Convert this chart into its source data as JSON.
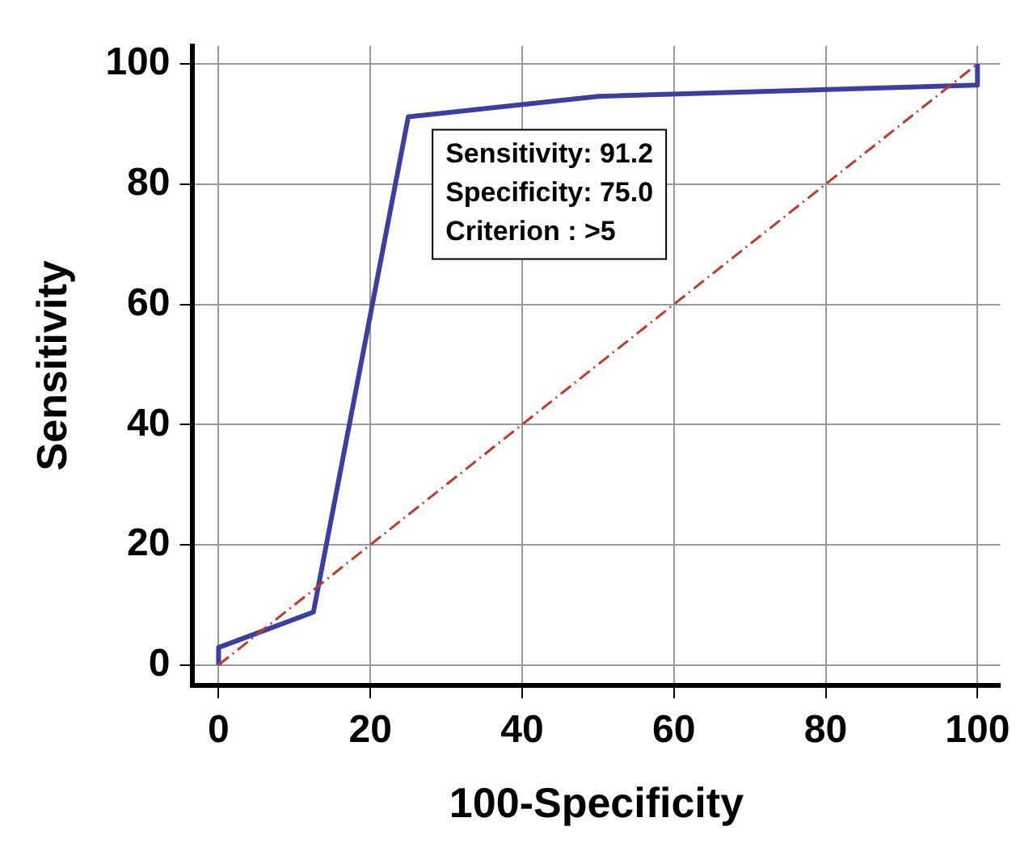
{
  "chart_data": {
    "type": "line",
    "xlabel": "100-Specificity",
    "ylabel": "Sensitivity",
    "xlim": [
      -3.4,
      103
    ],
    "xticks": [
      0,
      20,
      40,
      60,
      80,
      100
    ],
    "ylim": [
      -3.4,
      103
    ],
    "yticks": [
      0,
      20,
      40,
      60,
      80,
      100
    ],
    "grid": true,
    "marker": "none",
    "series": [
      {
        "color": "#3a3fa0",
        "x": [
          0,
          0,
          12.5,
          25,
          50,
          100,
          100
        ],
        "values": [
          0,
          2.9,
          8.8,
          91.2,
          94.6,
          96.5,
          100
        ],
        "line_style": "solid"
      },
      {
        "color": "#c0392b",
        "x": [
          0,
          100
        ],
        "values": [
          0,
          100
        ],
        "line_style": "dashed"
      }
    ],
    "annotations": [
      {
        "text": "Sensitivity: 91.2\nSpecificity: 75.0\nCriterion : >5",
        "x": 25,
        "y": 91.2
      }
    ]
  }
}
